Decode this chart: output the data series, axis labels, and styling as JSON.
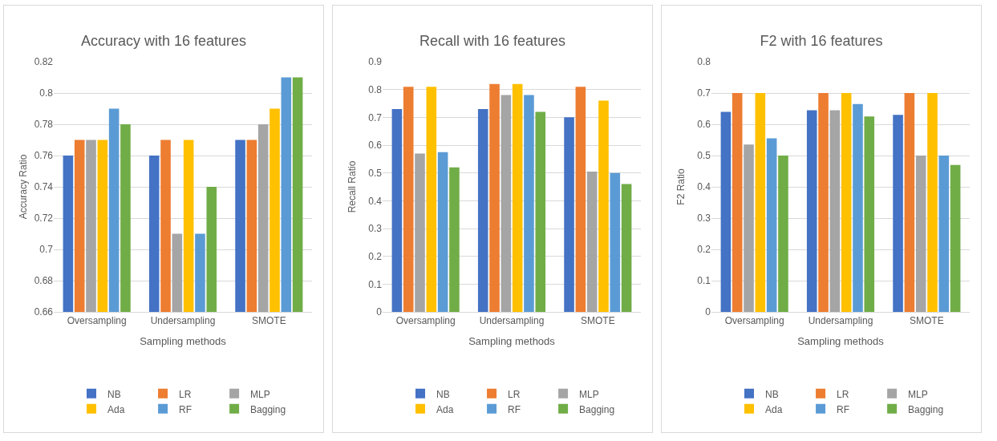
{
  "chart_data": [
    {
      "type": "bar",
      "title": "Accuracy with 16 features",
      "xlabel": "Sampling methods",
      "ylabel": "Accuracy Ratio",
      "categories": [
        "Oversampling",
        "Undersampling",
        "SMOTE"
      ],
      "ylim": [
        0.66,
        0.82
      ],
      "yticks": [
        0.66,
        0.68,
        0.7,
        0.72,
        0.74,
        0.76,
        0.78,
        0.8,
        0.82
      ],
      "grid": "y",
      "legend": "bottom",
      "series": [
        {
          "name": "NB",
          "color": "#4472c4",
          "values": [
            0.76,
            0.76,
            0.77
          ]
        },
        {
          "name": "LR",
          "color": "#ed7d31",
          "values": [
            0.77,
            0.77,
            0.77
          ]
        },
        {
          "name": "MLP",
          "color": "#a5a5a5",
          "values": [
            0.77,
            0.71,
            0.78
          ]
        },
        {
          "name": "Ada",
          "color": "#ffc000",
          "values": [
            0.77,
            0.77,
            0.79
          ]
        },
        {
          "name": "RF",
          "color": "#5b9bd5",
          "values": [
            0.79,
            0.71,
            0.81
          ]
        },
        {
          "name": "Bagging",
          "color": "#70ad47",
          "values": [
            0.78,
            0.74,
            0.81
          ]
        }
      ]
    },
    {
      "type": "bar",
      "title": "Recall with 16 features",
      "xlabel": "Sampling methods",
      "ylabel": "Recall Ratio",
      "categories": [
        "Oversampling",
        "Undersampling",
        "SMOTE"
      ],
      "ylim": [
        0,
        0.9
      ],
      "yticks": [
        0,
        0.1,
        0.2,
        0.3,
        0.4,
        0.5,
        0.6,
        0.7,
        0.8,
        0.9
      ],
      "grid": "y",
      "legend": "bottom",
      "series": [
        {
          "name": "NB",
          "color": "#4472c4",
          "values": [
            0.73,
            0.73,
            0.7
          ]
        },
        {
          "name": "LR",
          "color": "#ed7d31",
          "values": [
            0.81,
            0.82,
            0.81
          ]
        },
        {
          "name": "MLP",
          "color": "#a5a5a5",
          "values": [
            0.57,
            0.78,
            0.505
          ]
        },
        {
          "name": "Ada",
          "color": "#ffc000",
          "values": [
            0.81,
            0.82,
            0.76
          ]
        },
        {
          "name": "RF",
          "color": "#5b9bd5",
          "values": [
            0.575,
            0.78,
            0.5
          ]
        },
        {
          "name": "Bagging",
          "color": "#70ad47",
          "values": [
            0.52,
            0.72,
            0.46
          ]
        }
      ]
    },
    {
      "type": "bar",
      "title": "F2 with 16 features",
      "xlabel": "Sampling methods",
      "ylabel": "F2 Ratio",
      "categories": [
        "Oversampling",
        "Undersampling",
        "SMOTE"
      ],
      "ylim": [
        0,
        0.8
      ],
      "yticks": [
        0,
        0.1,
        0.2,
        0.3,
        0.4,
        0.5,
        0.6,
        0.7,
        0.8
      ],
      "grid": "y",
      "legend": "bottom",
      "series": [
        {
          "name": "NB",
          "color": "#4472c4",
          "values": [
            0.64,
            0.645,
            0.63
          ]
        },
        {
          "name": "LR",
          "color": "#ed7d31",
          "values": [
            0.7,
            0.7,
            0.7
          ]
        },
        {
          "name": "MLP",
          "color": "#a5a5a5",
          "values": [
            0.535,
            0.645,
            0.5
          ]
        },
        {
          "name": "Ada",
          "color": "#ffc000",
          "values": [
            0.7,
            0.7,
            0.7
          ]
        },
        {
          "name": "RF",
          "color": "#5b9bd5",
          "values": [
            0.555,
            0.665,
            0.5
          ]
        },
        {
          "name": "Bagging",
          "color": "#70ad47",
          "values": [
            0.5,
            0.625,
            0.47
          ]
        }
      ]
    }
  ]
}
